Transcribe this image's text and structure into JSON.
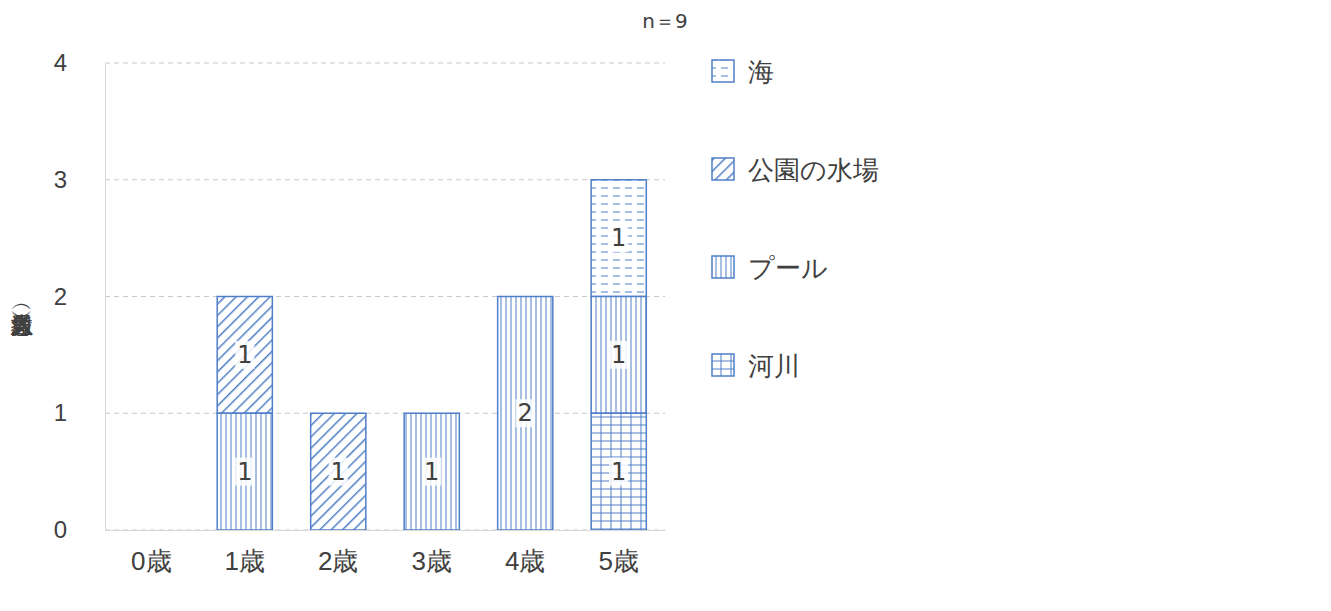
{
  "chart_data": {
    "type": "bar",
    "stacked": true,
    "data_labels": true,
    "grid": true,
    "legend": "right",
    "annotations": [
      "n＝9"
    ],
    "y_label": "救急搬送人員（人）",
    "categories": [
      "0歳",
      "1歳",
      "2歳",
      "3歳",
      "4歳",
      "5歳"
    ],
    "series": [
      {
        "name": "海",
        "color": "#4f7fc8",
        "values": [
          0,
          0,
          0,
          0,
          0,
          1
        ]
      },
      {
        "name": "公園の水場",
        "color": "#4f7fc8",
        "values": [
          0,
          1,
          1,
          0,
          0,
          0
        ]
      },
      {
        "name": "プール",
        "color": "#4f7fc8",
        "values": [
          0,
          1,
          0,
          1,
          2,
          1
        ]
      },
      {
        "name": "河川",
        "color": "#4f7fc8",
        "values": [
          0,
          0,
          0,
          0,
          0,
          1
        ]
      }
    ],
    "ylim": [
      0,
      4
    ],
    "yticks": [
      0,
      1,
      2,
      3,
      4
    ]
  }
}
